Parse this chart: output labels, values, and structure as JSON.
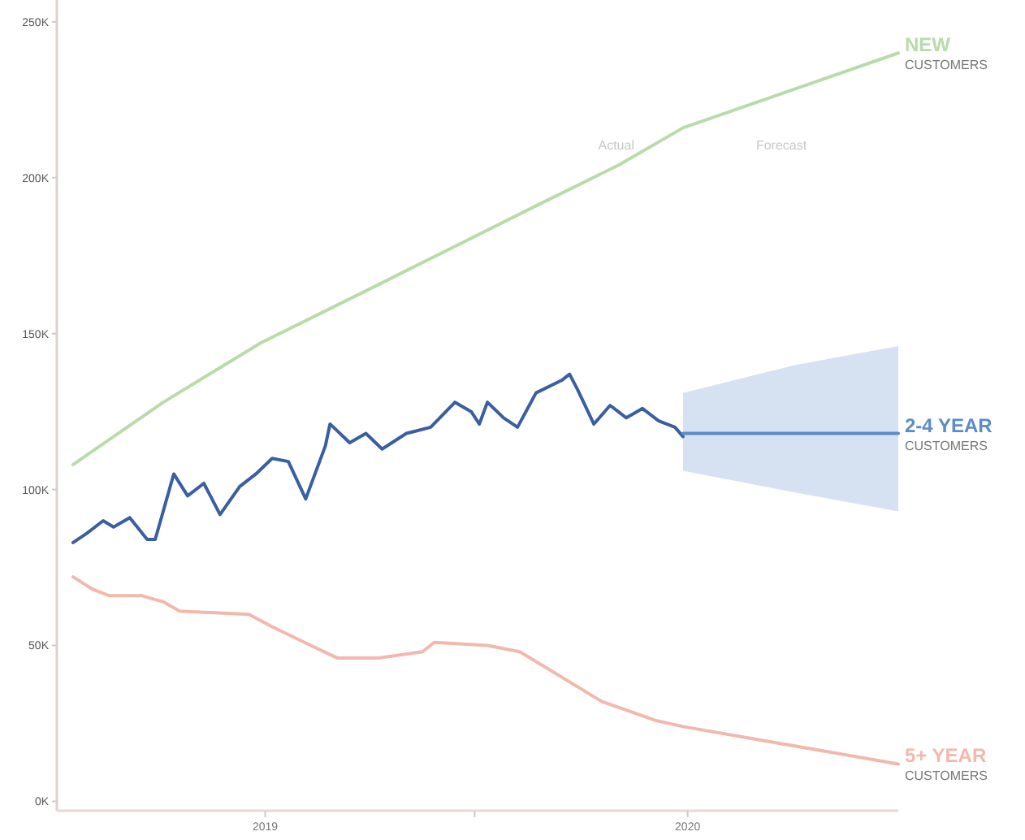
{
  "chart_data": {
    "type": "line",
    "xlim": [
      "2018-07-05",
      "2020-07-01"
    ],
    "ylim": [
      -3,
      257
    ],
    "xticks": [
      {
        "value": "2019-01-01",
        "label": "2019"
      },
      {
        "value": "2019-07-01",
        "label": null
      },
      {
        "value": "2020-01-01",
        "label": "2020"
      }
    ],
    "yticks": [
      {
        "value": 0,
        "label": "0K"
      },
      {
        "value": 50,
        "label": "50K"
      },
      {
        "value": 100,
        "label": "100K"
      },
      {
        "value": 150,
        "label": "150K"
      },
      {
        "value": 200,
        "label": "200K"
      },
      {
        "value": 250,
        "label": "250K"
      }
    ],
    "annotations": [
      "Actual",
      "Forecast"
    ],
    "series": [
      {
        "name": "NEW CUSTOMERS",
        "color": "#b9dbaa",
        "x": [
          "2018-07-19",
          "2018-10-05",
          "2018-12-28",
          "2019-04-05",
          "2019-06-14",
          "2019-08-23",
          "2019-11-02",
          "2019-12-28",
          "2020-07-01"
        ],
        "values": [
          108,
          128,
          147,
          165,
          178,
          191,
          204,
          216,
          240
        ]
      },
      {
        "color": "#3a5fa0",
        "x": [
          "2018-07-19",
          "2018-07-31",
          "2018-08-14",
          "2018-08-23",
          "2018-09-06",
          "2018-09-21",
          "2018-09-28",
          "2018-10-14",
          "2018-10-26",
          "2018-11-09",
          "2018-11-23",
          "2018-12-10",
          "2018-12-24",
          "2019-01-07",
          "2019-01-21",
          "2019-02-05",
          "2019-02-22",
          "2019-02-26",
          "2019-03-01",
          "2019-03-15",
          "2019-03-29",
          "2019-04-12",
          "2019-05-03",
          "2019-05-24",
          "2019-06-14",
          "2019-06-28",
          "2019-07-05",
          "2019-07-12",
          "2019-07-26",
          "2019-08-07",
          "2019-08-23",
          "2019-09-14",
          "2019-09-21",
          "2019-09-28",
          "2019-10-12",
          "2019-10-26",
          "2019-11-09",
          "2019-11-23",
          "2019-12-07",
          "2019-12-21",
          "2019-12-28"
        ],
        "values": [
          83,
          86,
          90,
          88,
          91,
          84,
          84,
          105,
          98,
          102,
          92,
          101,
          105,
          110,
          109,
          97,
          114,
          121,
          120,
          115,
          118,
          113,
          118,
          120,
          128,
          125,
          121,
          128,
          123,
          120,
          131,
          135,
          137,
          132,
          121,
          127,
          123,
          126,
          122,
          120,
          117
        ]
      },
      {
        "name": "2-4 YEAR CUSTOMERS",
        "color": "#5a8cc8",
        "x": [
          "2019-12-28",
          "2020-04-04",
          "2020-07-01"
        ],
        "values": [
          118,
          118,
          118
        ],
        "lower": [
          106,
          99,
          93
        ],
        "upper": [
          131,
          140,
          146
        ]
      },
      {
        "name": "5+ YEAR CUSTOMERS",
        "color": "#f2b8ae",
        "x": [
          "2018-07-19",
          "2018-08-05",
          "2018-08-19",
          "2018-09-16",
          "2018-10-05",
          "2018-10-19",
          "2018-12-18",
          "2019-01-07",
          "2019-02-04",
          "2019-03-04",
          "2019-04-09",
          "2019-05-17",
          "2019-05-27",
          "2019-07-12",
          "2019-08-09",
          "2019-10-19",
          "2019-12-04",
          "2019-12-28",
          "2020-07-01"
        ],
        "values": [
          72,
          68,
          66,
          66,
          64,
          61,
          60,
          56,
          51,
          46,
          46,
          48,
          51,
          50,
          48,
          32,
          26,
          24,
          12
        ]
      }
    ]
  }
}
